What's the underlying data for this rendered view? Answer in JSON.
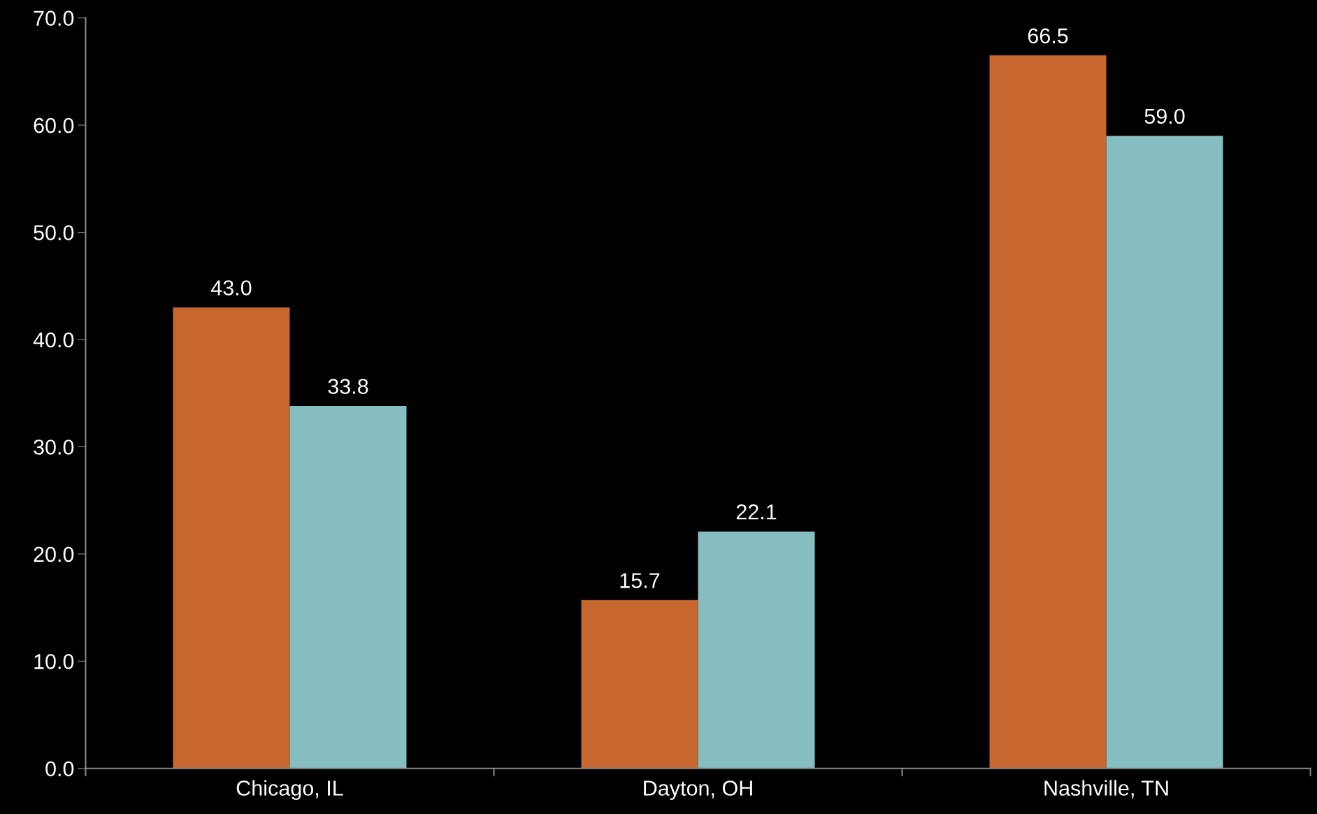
{
  "chart_data": {
    "type": "bar",
    "categories": [
      "Chicago, IL",
      "Dayton, OH",
      "Nashville, TN"
    ],
    "series": [
      {
        "color": "#c5672f",
        "values": [
          43.0,
          15.7,
          66.5
        ],
        "value_labels": [
          "43.0",
          "15.7",
          "66.5"
        ]
      },
      {
        "color": "#86bdc1",
        "values": [
          33.8,
          22.1,
          59.0
        ],
        "value_labels": [
          "33.8",
          "22.1",
          "59.0"
        ]
      }
    ],
    "ylim": [
      0,
      70
    ],
    "yticks": [
      {
        "value": 0,
        "label": "0.0"
      },
      {
        "value": 10,
        "label": "10.0"
      },
      {
        "value": 20,
        "label": "20.0"
      },
      {
        "value": 30,
        "label": "30.0"
      },
      {
        "value": 40,
        "label": "40.0"
      },
      {
        "value": 50,
        "label": "50.0"
      },
      {
        "value": 60,
        "label": "60.0"
      },
      {
        "value": 70,
        "label": "70.0"
      }
    ],
    "grid": false
  }
}
